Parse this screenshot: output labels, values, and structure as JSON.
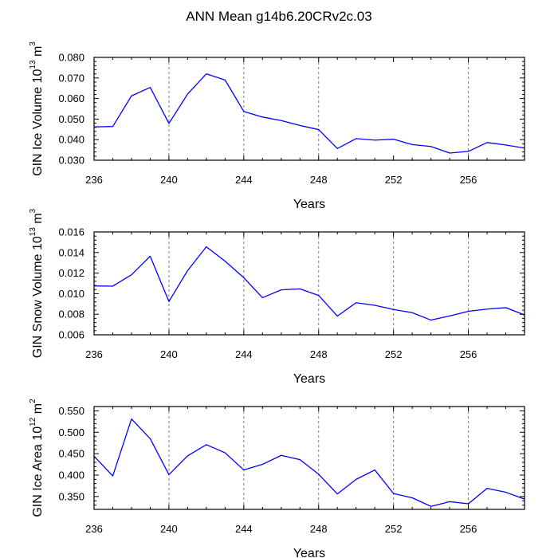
{
  "title": "ANN Mean g14b6.20CRv2c.03",
  "colors": {
    "line": "#0000ff",
    "axis": "#000000",
    "grid": "#808080"
  },
  "chart_data": [
    {
      "type": "line",
      "ylabel": {
        "prefix": "GIN Ice Volume 10",
        "exp": "13",
        "unit": " m",
        "unit_exp": "3"
      },
      "xlabel": "Years",
      "xlim": [
        236,
        259
      ],
      "ylim": [
        0.03,
        0.08
      ],
      "xticks": [
        236,
        240,
        244,
        248,
        252,
        256
      ],
      "yticks": [
        "0.030",
        "0.040",
        "0.050",
        "0.060",
        "0.070",
        "0.080"
      ],
      "grid_x": [
        240,
        244,
        248,
        256
      ],
      "x": [
        236,
        237,
        238,
        239,
        240,
        241,
        242,
        243,
        244,
        245,
        246,
        247,
        248,
        249,
        250,
        251,
        252,
        253,
        254,
        255,
        256,
        257,
        258,
        259
      ],
      "values": [
        0.0462,
        0.0464,
        0.0613,
        0.0654,
        0.0479,
        0.0622,
        0.072,
        0.069,
        0.0537,
        0.051,
        0.0493,
        0.0469,
        0.0449,
        0.0357,
        0.0405,
        0.0398,
        0.0402,
        0.0376,
        0.0367,
        0.0335,
        0.0343,
        0.0386,
        0.0374,
        0.0359
      ]
    },
    {
      "type": "line",
      "ylabel": {
        "prefix": "GIN Snow Volume 10",
        "exp": "13",
        "unit": " m",
        "unit_exp": "3"
      },
      "xlabel": "Years",
      "xlim": [
        236,
        259
      ],
      "ylim": [
        0.006,
        0.016
      ],
      "xticks": [
        236,
        240,
        244,
        248,
        252,
        256
      ],
      "yticks": [
        "0.006",
        "0.008",
        "0.010",
        "0.012",
        "0.014",
        "0.016"
      ],
      "grid_x": [
        240,
        244,
        248,
        252,
        256
      ],
      "x": [
        236,
        237,
        238,
        239,
        240,
        241,
        242,
        243,
        244,
        245,
        246,
        247,
        248,
        249,
        250,
        251,
        252,
        253,
        254,
        255,
        256,
        257,
        258,
        259
      ],
      "values": [
        0.01075,
        0.01073,
        0.01184,
        0.01364,
        0.00924,
        0.01225,
        0.01456,
        0.01316,
        0.01155,
        0.00961,
        0.01037,
        0.01047,
        0.00983,
        0.00782,
        0.00912,
        0.00887,
        0.00846,
        0.00815,
        0.00743,
        0.00783,
        0.00829,
        0.0085,
        0.00864,
        0.00793
      ]
    },
    {
      "type": "line",
      "ylabel": {
        "prefix": "GIN Ice Area 10",
        "exp": "12",
        "unit": " m",
        "unit_exp": "2"
      },
      "xlabel": "Years",
      "xlim": [
        236,
        259
      ],
      "ylim": [
        0.32,
        0.56
      ],
      "xticks": [
        236,
        240,
        244,
        248,
        252,
        256
      ],
      "yticks": [
        "0.350",
        "0.400",
        "0.450",
        "0.500",
        "0.550"
      ],
      "grid_x": [
        240,
        244,
        248,
        252,
        256
      ],
      "x": [
        236,
        237,
        238,
        239,
        240,
        241,
        242,
        243,
        244,
        245,
        246,
        247,
        248,
        249,
        250,
        251,
        252,
        253,
        254,
        255,
        256,
        257,
        258,
        259
      ],
      "values": [
        0.444,
        0.398,
        0.531,
        0.485,
        0.401,
        0.445,
        0.471,
        0.452,
        0.412,
        0.425,
        0.446,
        0.436,
        0.402,
        0.356,
        0.39,
        0.412,
        0.357,
        0.347,
        0.327,
        0.338,
        0.333,
        0.369,
        0.36,
        0.344
      ]
    }
  ]
}
